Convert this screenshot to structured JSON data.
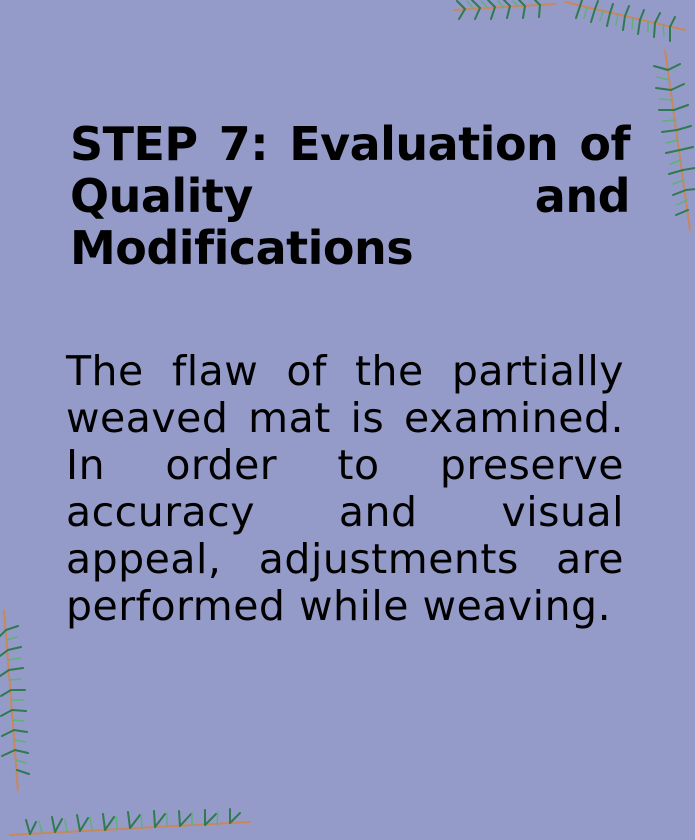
{
  "title": "STEP 7: Evaluation of Quality and Modifications",
  "body": "The flaw of the partially weaved mat is examined. In order to preserve accuracy and visual appeal, adjustments are performed while weaving.",
  "colors": {
    "background": "#959bc9",
    "text": "#000000",
    "leaf_dark": "#2f7a4f",
    "leaf_light": "#5fb07a",
    "twig": "#c9875a"
  },
  "decorations": [
    "pine-branch-icon",
    "pine-branch-icon"
  ]
}
